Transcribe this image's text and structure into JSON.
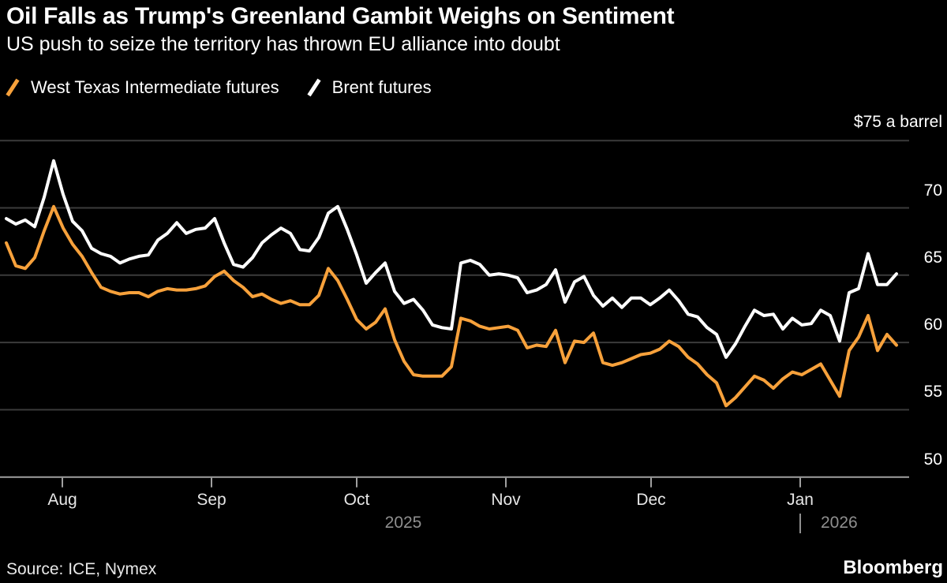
{
  "header": {
    "title": "Oil Falls as Trump's Greenland Gambit Weighs on Sentiment",
    "subtitle": "US push to seize the territory has thrown EU alliance into doubt"
  },
  "legend": [
    {
      "label": "West Texas Intermediate futures",
      "color": "#F7A13B",
      "icon": "orange-slash-icon"
    },
    {
      "label": "Brent futures",
      "color": "#FFFFFF",
      "icon": "white-slash-icon"
    }
  ],
  "chart_data": {
    "type": "line",
    "title": "Oil Falls as Trump's Greenland Gambit Weighs on Sentiment",
    "subtitle": "US push to seize the territory has thrown EU alliance into doubt",
    "unit_label": "$75 a barrel",
    "ylabel": "",
    "xlabel": "",
    "ylim": [
      50,
      75
    ],
    "ytick_values": [
      75,
      70,
      65,
      60,
      55,
      50
    ],
    "ytick_labels": [
      "$75 a barrel",
      "70",
      "65",
      "60",
      "55",
      "50"
    ],
    "xtick_labels": [
      "Aug",
      "Sep",
      "Oct",
      "Nov",
      "Dec",
      "Jan"
    ],
    "year_labels": [
      "2025",
      "2026"
    ],
    "x_start": "2025-07-21",
    "x_end": "2026-01-21",
    "x_note": "daily futures prices, points evenly spaced from late Jul 2025 to mid Jan 2026",
    "grid": "horizontal",
    "legend_position": "top",
    "series": [
      {
        "name": "West Texas Intermediate futures",
        "color": "#F7A13B",
        "values": [
          67.4,
          65.7,
          65.5,
          66.3,
          68.3,
          70.1,
          68.5,
          67.3,
          66.4,
          65.2,
          64.1,
          63.8,
          63.6,
          63.7,
          63.7,
          63.4,
          63.8,
          64.0,
          63.9,
          63.9,
          64.0,
          64.2,
          64.9,
          65.3,
          64.6,
          64.1,
          63.4,
          63.6,
          63.2,
          62.9,
          63.1,
          62.8,
          62.8,
          63.5,
          65.5,
          64.6,
          63.2,
          61.7,
          61.0,
          61.5,
          62.5,
          60.2,
          58.6,
          57.6,
          57.5,
          57.5,
          57.5,
          58.2,
          61.8,
          61.6,
          61.2,
          61.0,
          61.1,
          61.2,
          60.9,
          59.6,
          59.8,
          59.7,
          60.9,
          58.5,
          60.1,
          60.0,
          60.7,
          58.5,
          58.3,
          58.5,
          58.8,
          59.1,
          59.2,
          59.5,
          60.1,
          59.7,
          58.9,
          58.4,
          57.6,
          57.0,
          55.3,
          55.9,
          56.7,
          57.5,
          57.2,
          56.6,
          57.3,
          57.8,
          57.6,
          58.0,
          58.4,
          57.2,
          56.0,
          59.4,
          60.4,
          62.0,
          59.4,
          60.6,
          59.8
        ]
      },
      {
        "name": "Brent futures",
        "color": "#FFFFFF",
        "values": [
          69.2,
          68.8,
          69.1,
          68.6,
          70.8,
          73.5,
          71.0,
          69.0,
          68.3,
          67.0,
          66.6,
          66.4,
          65.9,
          66.2,
          66.4,
          66.5,
          67.6,
          68.1,
          68.9,
          68.1,
          68.4,
          68.5,
          69.2,
          67.4,
          65.8,
          65.6,
          66.3,
          67.4,
          68.0,
          68.5,
          68.1,
          66.9,
          66.8,
          67.8,
          69.6,
          70.1,
          68.4,
          66.5,
          64.4,
          65.2,
          65.9,
          63.8,
          62.9,
          63.2,
          62.4,
          61.3,
          61.1,
          61.0,
          65.9,
          66.1,
          65.8,
          65.0,
          65.1,
          65.0,
          64.8,
          63.7,
          63.9,
          64.3,
          65.4,
          63.0,
          64.5,
          64.9,
          63.5,
          62.7,
          63.3,
          62.6,
          63.3,
          63.3,
          62.8,
          63.3,
          63.9,
          63.1,
          62.1,
          61.9,
          61.1,
          60.6,
          58.9,
          59.9,
          61.2,
          62.4,
          62.0,
          62.1,
          61.0,
          61.8,
          61.3,
          61.4,
          62.4,
          62.0,
          60.1,
          63.7,
          64.0,
          66.6,
          64.3,
          64.3,
          65.1
        ]
      }
    ]
  },
  "footer": {
    "source": "Source: ICE, Nymex",
    "brand": "Bloomberg"
  },
  "colors": {
    "background": "#000000",
    "grid": "#3B3B3B",
    "axis": "#A0A0A0",
    "month_label": "#E6E6E6",
    "year_label": "#8F8F8F",
    "wti": "#F7A13B",
    "brent": "#FFFFFF"
  }
}
